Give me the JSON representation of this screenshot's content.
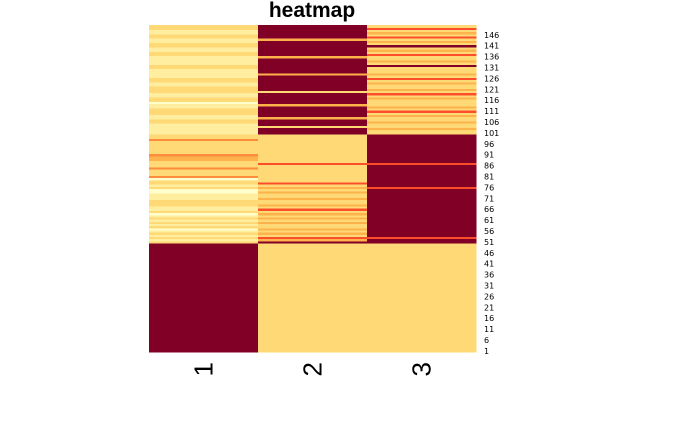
{
  "chart_data": {
    "type": "heatmap",
    "title": "heatmap",
    "columns": [
      "1",
      "2",
      "3"
    ],
    "row_tick_labels": [
      "1",
      "6",
      "11",
      "16",
      "21",
      "26",
      "31",
      "36",
      "41",
      "46",
      "51",
      "56",
      "61",
      "66",
      "71",
      "76",
      "81",
      "86",
      "91",
      "96",
      "101",
      "106",
      "111",
      "116",
      "121",
      "126",
      "131",
      "136",
      "141",
      "146"
    ],
    "row_count": 150,
    "palette": [
      "#FFFFCC",
      "#FFEDA0",
      "#FED976",
      "#FEB24C",
      "#FD8D3C",
      "#FC4E2A",
      "#E31A1C",
      "#BD0026",
      "#800026"
    ],
    "value_range": [
      0,
      1
    ],
    "rows_1_to_50": {
      "col1": 1.0,
      "col2": 0.3,
      "col3": 0.3
    },
    "col1_rows_51_to_150": [
      0.2,
      0.15,
      0.3,
      0.15,
      0.3,
      0.15,
      0.05,
      0.3,
      0.15,
      0.3,
      0.15,
      0.3,
      0.15,
      0.05,
      0.3,
      0.15,
      0.15,
      0.3,
      0.3,
      0.3,
      0.15,
      0.15,
      0.15,
      0.05,
      0.05,
      0.3,
      0.15,
      0.2,
      0.3,
      0.05,
      0.45,
      0.3,
      0.3,
      0.3,
      0.45,
      0.3,
      0.3,
      0.2,
      0.4,
      0.4,
      0.55,
      0.3,
      0.3,
      0.3,
      0.3,
      0.3,
      0.3,
      0.55,
      0.3,
      0.3,
      0.15,
      0.15,
      0.15,
      0.15,
      0.15,
      0.3,
      0.3,
      0.15,
      0.15,
      0.3,
      0.3,
      0.3,
      0.15,
      0.15,
      0.05,
      0.3,
      0.3,
      0.15,
      0.15,
      0.3,
      0.3,
      0.3,
      0.15,
      0.15,
      0.3,
      0.3,
      0.15,
      0.15,
      0.15,
      0.15,
      0.3,
      0.3,
      0.15,
      0.15,
      0.15,
      0.15,
      0.3,
      0.3,
      0.15,
      0.15,
      0.3,
      0.3,
      0.15,
      0.15,
      0.3,
      0.3,
      0.15,
      0.15,
      0.3,
      0.3
    ],
    "col2_rows_51_to_150": [
      1.0,
      0.35,
      0.65,
      0.3,
      0.35,
      0.3,
      0.35,
      0.3,
      0.3,
      0.35,
      0.3,
      0.35,
      0.3,
      0.35,
      0.3,
      0.65,
      0.3,
      0.35,
      0.3,
      0.3,
      0.35,
      0.3,
      0.3,
      0.35,
      0.3,
      0.35,
      0.3,
      0.65,
      0.3,
      0.3,
      0.3,
      0.3,
      0.3,
      0.3,
      0.3,
      0.3,
      0.65,
      0.3,
      0.3,
      0.3,
      0.3,
      0.3,
      0.3,
      0.3,
      0.3,
      0.3,
      0.3,
      0.3,
      0.3,
      0.3,
      1.0,
      1.0,
      1.0,
      0.3,
      1.0,
      1.0,
      1.0,
      0.35,
      1.0,
      1.0,
      1.0,
      1.0,
      1.0,
      0.35,
      1.0,
      1.0,
      1.0,
      1.0,
      1.0,
      0.3,
      1.0,
      1.0,
      1.0,
      1.0,
      1.0,
      1.0,
      1.0,
      0.35,
      1.0,
      1.0,
      1.0,
      1.0,
      1.0,
      1.0,
      1.0,
      0.35,
      1.0,
      1.0,
      1.0,
      1.0,
      1.0,
      1.0,
      1.0,
      0.35,
      1.0,
      1.0,
      1.0,
      1.0,
      1.0,
      1.0
    ],
    "col3_rows_51_to_150": [
      1.0,
      1.0,
      0.65,
      1.0,
      1.0,
      1.0,
      1.0,
      1.0,
      1.0,
      1.0,
      1.0,
      1.0,
      1.0,
      1.0,
      1.0,
      1.0,
      1.0,
      1.0,
      1.0,
      1.0,
      1.0,
      1.0,
      1.0,
      1.0,
      1.0,
      0.65,
      1.0,
      1.0,
      1.0,
      1.0,
      1.0,
      1.0,
      1.0,
      1.0,
      1.0,
      1.0,
      0.65,
      1.0,
      1.0,
      1.0,
      1.0,
      1.0,
      1.0,
      1.0,
      1.0,
      1.0,
      1.0,
      1.0,
      1.0,
      1.0,
      0.3,
      0.3,
      0.35,
      0.3,
      0.3,
      0.35,
      0.3,
      0.3,
      0.35,
      0.3,
      0.65,
      0.3,
      0.35,
      0.3,
      0.3,
      0.3,
      0.35,
      0.3,
      0.65,
      0.3,
      0.35,
      0.3,
      0.3,
      0.35,
      0.3,
      0.65,
      0.3,
      0.35,
      0.3,
      0.3,
      0.3,
      1.0,
      0.3,
      0.35,
      0.3,
      0.3,
      0.65,
      0.3,
      0.35,
      0.3,
      1.0,
      0.3,
      0.35,
      0.3,
      0.65,
      0.3,
      0.35,
      0.3,
      0.65,
      0.3
    ]
  }
}
